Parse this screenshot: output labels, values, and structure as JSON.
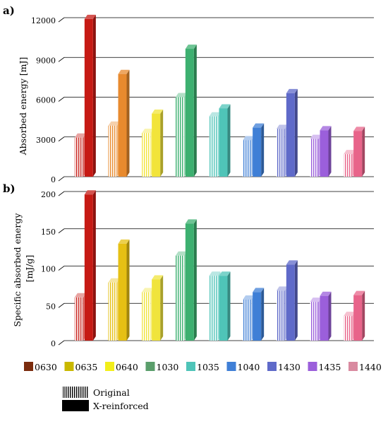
{
  "chart_data": [
    {
      "type": "bar",
      "panel_label": "a)",
      "ylabel": "Absorbed energy [mJ]",
      "ylim": [
        0,
        12000
      ],
      "yticks": [
        0,
        3000,
        6000,
        9000,
        12000
      ],
      "ytick_labels": [
        "0",
        "3000",
        "6000",
        "9000",
        "12000"
      ],
      "categories": [
        "0630",
        "0635",
        "0640",
        "1030",
        "1035",
        "1040",
        "1430",
        "1435",
        "1440"
      ],
      "series": [
        {
          "name": "Original",
          "values": [
            2950,
            3850,
            3300,
            6000,
            4550,
            2750,
            3600,
            2850,
            1700
          ]
        },
        {
          "name": "X-reinforced",
          "values": [
            11900,
            7750,
            4750,
            9650,
            5150,
            3700,
            6300,
            3500,
            3450
          ]
        }
      ],
      "grid": true
    },
    {
      "type": "bar",
      "panel_label": "b)",
      "ylabel": "Specific absorbed energy [mJ/g]",
      "ylim": [
        0,
        200
      ],
      "yticks": [
        0,
        50,
        100,
        150,
        200
      ],
      "ytick_labels": [
        "0",
        "50",
        "100",
        "150",
        "200"
      ],
      "categories": [
        "0630",
        "0635",
        "0640",
        "1030",
        "1035",
        "1040",
        "1430",
        "1435",
        "1440"
      ],
      "series": [
        {
          "name": "Original",
          "values": [
            58,
            78,
            65,
            114,
            87,
            55,
            67,
            52,
            33
          ]
        },
        {
          "name": "X-reinforced",
          "values": [
            196,
            130,
            82,
            157,
            87,
            65,
            102,
            60,
            61
          ]
        }
      ],
      "grid": true
    }
  ],
  "legend": {
    "colors": [
      {
        "label": "0630",
        "color": "#7B2C0E"
      },
      {
        "label": "0635",
        "color": "#C9B800"
      },
      {
        "label": "0640",
        "color": "#F2EE1A"
      },
      {
        "label": "1030",
        "color": "#5A9E6B"
      },
      {
        "label": "1035",
        "color": "#4FC4B8"
      },
      {
        "label": "1040",
        "color": "#3F7FD6"
      },
      {
        "label": "1430",
        "color": "#5F6AC9"
      },
      {
        "label": "1435",
        "color": "#9B5FDB"
      },
      {
        "label": "1440",
        "color": "#D98AA0"
      }
    ],
    "patterns": [
      {
        "label": "Original",
        "style": "vertical-stripes"
      },
      {
        "label": "X-reinforced",
        "style": "solid"
      }
    ]
  },
  "bar_colors": {
    "a": [
      "#C61A14",
      "#E88A2E",
      "#F2E43A",
      "#3DB070",
      "#4FC4B8",
      "#3F7FD6",
      "#5F6AC9",
      "#9B5FDB",
      "#E8648A"
    ],
    "b": [
      "#C61A14",
      "#E6C014",
      "#F0E43C",
      "#3DB070",
      "#4FC4B8",
      "#3F7FD6",
      "#5F6AC9",
      "#9B5FDB",
      "#E8648A"
    ]
  }
}
